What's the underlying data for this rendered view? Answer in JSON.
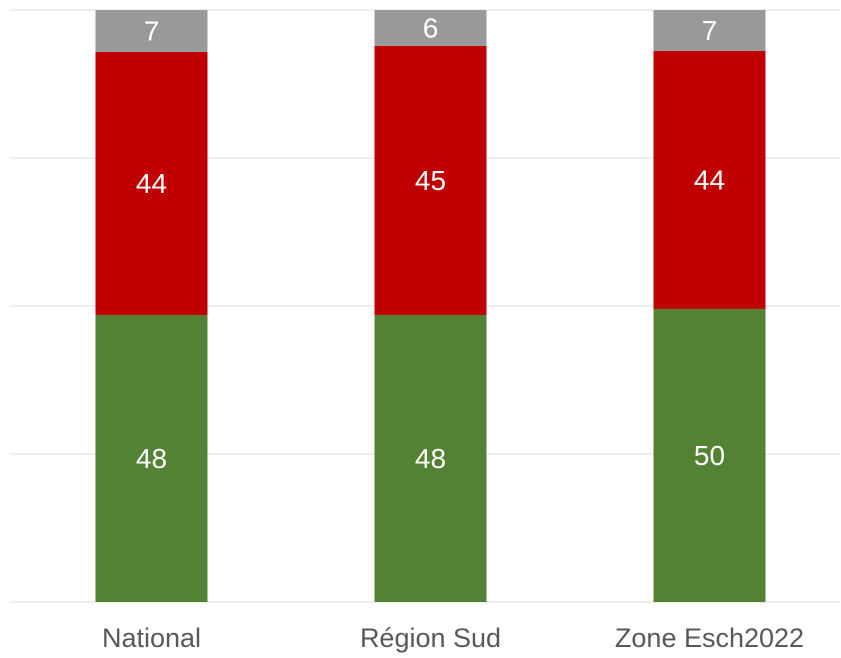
{
  "chart_data": {
    "type": "bar",
    "stacked": "percent",
    "categories": [
      "National",
      "Région Sud",
      "Zone Esch2022"
    ],
    "series": [
      {
        "color": "#548235",
        "values": [
          48,
          48,
          50
        ]
      },
      {
        "color": "#c00000",
        "values": [
          44,
          45,
          44
        ]
      },
      {
        "color": "#999999",
        "values": [
          7,
          6,
          7
        ]
      }
    ],
    "ylim": [
      0,
      100
    ],
    "yticks": [
      0,
      25,
      50,
      75,
      100
    ],
    "grid": true
  }
}
